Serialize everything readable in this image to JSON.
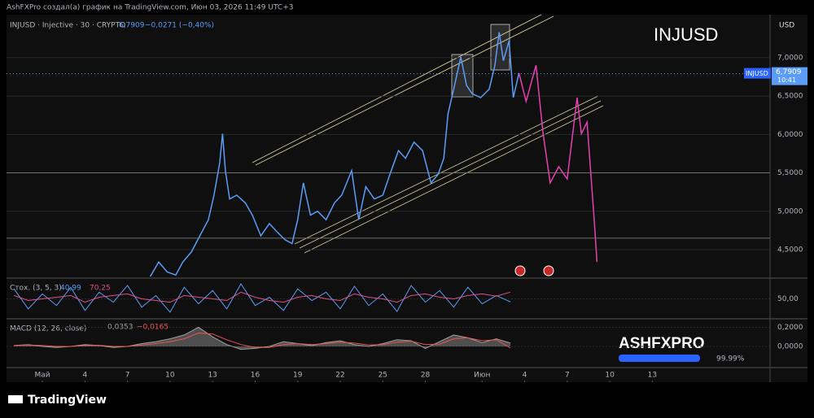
{
  "header": "AshFXPro создал(а) график на TradingView.com, Июн 03, 2026 11:49 UTC+3",
  "footer": "TradingView",
  "badge": {
    "title": "ASHFXPRO",
    "progress": {
      "value": 99.99,
      "label": "99.99%"
    }
  },
  "chart_data": [
    {
      "type": "line",
      "title": "INJUSD",
      "legend": {
        "symbol": "INJUSD · Injective · 30 · CRYPTO",
        "price": "6,7909",
        "change": "−0,0271 (−0,40%)"
      },
      "currency": "USD",
      "price_tag": "INJUSD",
      "last_price": {
        "value": 6.7909,
        "label": "6,7909"
      },
      "countdown": "10:41",
      "series": [
        {
          "color": "#5b9cf6",
          "x": [
            8.6,
            9.2,
            9.8,
            10.4,
            10.9,
            11.5,
            12.1,
            12.7,
            13.1,
            13.5,
            13.7,
            13.9,
            14.2,
            14.7,
            15.3,
            15.8,
            16.4,
            17.0,
            17.5,
            18.1,
            18.6,
            19.0,
            19.4,
            19.9,
            20.4,
            21.0,
            21.6,
            22.1,
            22.8,
            23.3,
            23.8,
            24.4,
            25.0,
            25.5,
            26.1,
            26.6,
            27.2,
            27.8,
            28.4,
            28.9,
            29.3,
            29.6,
            30.0,
            30.5,
            30.9,
            31.3,
            31.9,
            32.5,
            32.9,
            33.2,
            33.5,
            33.9,
            34.2,
            34.6
          ],
          "values": [
            4.15,
            4.34,
            4.21,
            4.17,
            4.34,
            4.47,
            4.68,
            4.89,
            5.21,
            5.63,
            6.01,
            5.53,
            5.16,
            5.21,
            5.11,
            4.95,
            4.68,
            4.84,
            4.74,
            4.63,
            4.58,
            4.89,
            5.37,
            4.95,
            5.0,
            4.89,
            5.11,
            5.21,
            5.53,
            4.89,
            5.32,
            5.16,
            5.21,
            5.48,
            5.79,
            5.69,
            5.9,
            5.79,
            5.37,
            5.48,
            5.69,
            6.27,
            6.59,
            7.01,
            6.64,
            6.53,
            6.48,
            6.59,
            6.9,
            7.33,
            6.96,
            7.22,
            6.48,
            6.8
          ]
        },
        {
          "color": "#e83fb0",
          "x": [
            34.6,
            35.1,
            35.8,
            36.3,
            36.8,
            37.4,
            38.0,
            38.7,
            39.0,
            39.4,
            39.9,
            40.1
          ],
          "values": [
            6.8,
            6.43,
            6.9,
            6.01,
            5.37,
            5.58,
            5.42,
            6.48,
            6.01,
            6.16,
            4.9,
            4.34
          ]
        }
      ],
      "levels": [
        5.5,
        4.65
      ],
      "xlim": [
        -1.53,
        52.3
      ],
      "ylim": [
        4.13,
        7.56
      ],
      "yticks": [
        {
          "value": 4.5,
          "label": "4,5000"
        },
        {
          "value": 5,
          "label": "5,0000"
        },
        {
          "value": 5.5,
          "label": "5,5000"
        },
        {
          "value": 6,
          "label": "6,0000"
        },
        {
          "value": 6.5,
          "label": "6,5000"
        },
        {
          "value": 7,
          "label": "7,0000"
        }
      ],
      "xticks": [
        {
          "value": 1,
          "label": "Май"
        },
        4,
        7,
        10,
        13,
        16,
        19,
        22,
        25,
        28,
        {
          "value": 32,
          "label": "Июн"
        },
        {
          "value": 35,
          "label": "4"
        },
        {
          "value": 38,
          "label": "7"
        },
        {
          "value": 41,
          "label": "10"
        },
        {
          "value": 44,
          "label": "13"
        }
      ]
    },
    {
      "type": "line",
      "title": "Стох. (3, 5, 3)",
      "x": [
        -1,
        0,
        1,
        2,
        3,
        4,
        5,
        6,
        7,
        8,
        9,
        10,
        11,
        12,
        13,
        14,
        15,
        16,
        17,
        18,
        19,
        20,
        21,
        22,
        23,
        24,
        25,
        26,
        27,
        28,
        29,
        30,
        31,
        32,
        33,
        34
      ],
      "series": [
        {
          "color": "#5b9cf6",
          "last_label": "40,99",
          "values": [
            80,
            20,
            65,
            30,
            85,
            15,
            70,
            40,
            90,
            25,
            60,
            10,
            85,
            35,
            75,
            20,
            95,
            30,
            55,
            15,
            80,
            45,
            70,
            20,
            88,
            30,
            65,
            12,
            90,
            40,
            75,
            25,
            85,
            35,
            60,
            40.99
          ]
        },
        {
          "color": "#e0508a",
          "last_label": "70,25",
          "values": [
            60,
            45,
            50,
            55,
            60,
            40,
            55,
            60,
            65,
            50,
            45,
            40,
            60,
            55,
            50,
            45,
            70,
            55,
            45,
            40,
            55,
            60,
            50,
            45,
            65,
            55,
            50,
            40,
            60,
            65,
            55,
            50,
            60,
            65,
            58,
            70.25
          ]
        }
      ],
      "xlim": [
        -1.53,
        52.3
      ],
      "ylim": [
        -5,
        105
      ],
      "yticks": [
        {
          "value": 50,
          "label": "50,00"
        }
      ]
    },
    {
      "type": "line",
      "title": "MACD (12, 26, close)",
      "x": [
        -1,
        0,
        1,
        2,
        3,
        4,
        5,
        6,
        7,
        8,
        9,
        10,
        11,
        12,
        13,
        14,
        15,
        16,
        17,
        18,
        19,
        20,
        21,
        22,
        23,
        24,
        25,
        26,
        27,
        28,
        29,
        30,
        31,
        32,
        33,
        34
      ],
      "series": [
        {
          "color": "#9e9e9e",
          "last_label": "0,0353",
          "values": [
            0.01,
            0.02,
            0.0,
            -0.01,
            0.0,
            0.02,
            0.01,
            -0.01,
            0.0,
            0.03,
            0.05,
            0.08,
            0.12,
            0.2,
            0.1,
            0.02,
            -0.03,
            -0.02,
            0.0,
            0.05,
            0.03,
            0.01,
            0.04,
            0.06,
            0.02,
            0.0,
            0.03,
            0.07,
            0.06,
            -0.02,
            0.05,
            0.12,
            0.09,
            0.04,
            0.08,
            0.0353
          ]
        },
        {
          "color": "#ef5350",
          "last_label": "−0,0165",
          "values": [
            0.01,
            0.015,
            0.01,
            0.0,
            0.0,
            0.01,
            0.012,
            0.0,
            0.0,
            0.015,
            0.03,
            0.05,
            0.08,
            0.14,
            0.13,
            0.07,
            0.02,
            -0.01,
            -0.01,
            0.02,
            0.03,
            0.02,
            0.03,
            0.045,
            0.035,
            0.015,
            0.02,
            0.045,
            0.055,
            0.02,
            0.025,
            0.08,
            0.09,
            0.06,
            0.07,
            -0.0165
          ]
        }
      ],
      "xlim": [
        -1.53,
        52.3
      ],
      "ylim": [
        -0.22,
        0.28
      ],
      "yticks": [
        {
          "value": 0,
          "label": "0,0000"
        },
        {
          "value": 0.2,
          "label": "0,2000"
        }
      ]
    }
  ]
}
